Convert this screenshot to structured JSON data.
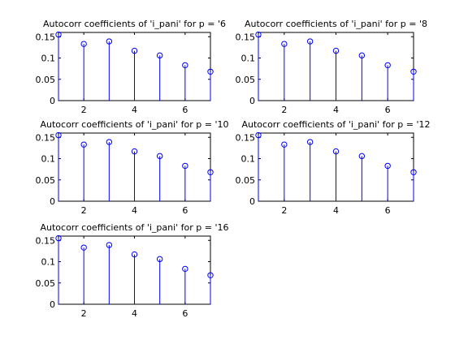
{
  "figure": {
    "background": "#ffffff"
  },
  "style": {
    "stem_color": "#0000ff",
    "axes_color": "#000000"
  },
  "chart_data": [
    {
      "type": "stem",
      "title": "Autocorr coefficients of 'i_pani' for p = '6",
      "x": [
        1,
        2,
        3,
        4,
        5,
        6,
        7
      ],
      "values": [
        0.155,
        0.133,
        0.139,
        0.117,
        0.106,
        0.083,
        0.068
      ],
      "xlim": [
        1,
        7
      ],
      "ylim": [
        0,
        0.16
      ],
      "xticks": [
        2,
        4,
        6
      ],
      "yticks": [
        0,
        0.05,
        0.1,
        0.15
      ],
      "xlabel": "",
      "ylabel": "",
      "grid": false
    },
    {
      "type": "stem",
      "title": "Autocorr coefficients of 'i_pani' for p = '8",
      "x": [
        1,
        2,
        3,
        4,
        5,
        6,
        7
      ],
      "values": [
        0.155,
        0.133,
        0.139,
        0.117,
        0.106,
        0.083,
        0.068
      ],
      "xlim": [
        1,
        7
      ],
      "ylim": [
        0,
        0.16
      ],
      "xticks": [
        2,
        4,
        6
      ],
      "yticks": [
        0,
        0.05,
        0.1,
        0.15
      ],
      "xlabel": "",
      "ylabel": "",
      "grid": false
    },
    {
      "type": "stem",
      "title": "Autocorr coefficients of 'i_pani' for p = '10",
      "x": [
        1,
        2,
        3,
        4,
        5,
        6,
        7
      ],
      "values": [
        0.155,
        0.133,
        0.139,
        0.117,
        0.106,
        0.083,
        0.068
      ],
      "xlim": [
        1,
        7
      ],
      "ylim": [
        0,
        0.16
      ],
      "xticks": [
        2,
        4,
        6
      ],
      "yticks": [
        0,
        0.05,
        0.1,
        0.15
      ],
      "xlabel": "",
      "ylabel": "",
      "grid": false
    },
    {
      "type": "stem",
      "title": "Autocorr coefficients of 'i_pani' for p = '12",
      "x": [
        1,
        2,
        3,
        4,
        5,
        6,
        7
      ],
      "values": [
        0.155,
        0.133,
        0.139,
        0.117,
        0.106,
        0.083,
        0.068
      ],
      "xlim": [
        1,
        7
      ],
      "ylim": [
        0,
        0.16
      ],
      "xticks": [
        2,
        4,
        6
      ],
      "yticks": [
        0,
        0.05,
        0.1,
        0.15
      ],
      "xlabel": "",
      "ylabel": "",
      "grid": false
    },
    {
      "type": "stem",
      "title": "Autocorr coefficients of 'i_pani' for p = '16",
      "x": [
        1,
        2,
        3,
        4,
        5,
        6,
        7
      ],
      "values": [
        0.155,
        0.133,
        0.139,
        0.117,
        0.106,
        0.083,
        0.068
      ],
      "xlim": [
        1,
        7
      ],
      "ylim": [
        0,
        0.16
      ],
      "xticks": [
        2,
        4,
        6
      ],
      "yticks": [
        0,
        0.05,
        0.1,
        0.15
      ],
      "xlabel": "",
      "ylabel": "",
      "grid": false
    }
  ]
}
